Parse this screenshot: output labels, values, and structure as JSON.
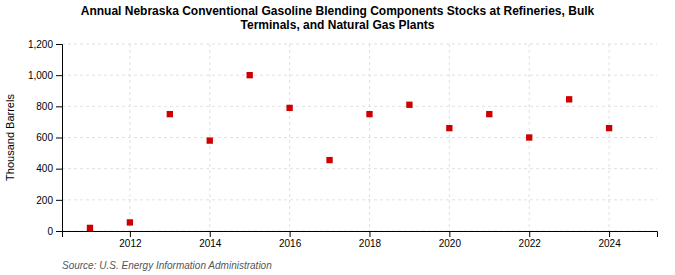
{
  "chart_data": {
    "type": "scatter",
    "title": "Annual Nebraska Conventional Gasoline Blending Components Stocks at Refineries, Bulk\nTerminals, and Natural Gas Plants",
    "ylabel": "Thousand Barrels",
    "source": "Source: U.S. Energy Information Administration",
    "x": [
      2011,
      2012,
      2013,
      2014,
      2015,
      2016,
      2017,
      2018,
      2019,
      2020,
      2021,
      2022,
      2023,
      2024
    ],
    "values": [
      20,
      55,
      750,
      580,
      1000,
      790,
      455,
      750,
      810,
      660,
      750,
      600,
      845,
      660
    ],
    "color": "#cc0000",
    "marker": "square",
    "xlim": [
      2010.3,
      2025.2
    ],
    "xticks": [
      2012,
      2014,
      2016,
      2018,
      2020,
      2022,
      2024
    ],
    "ylim": [
      0,
      1200
    ],
    "yticks": [
      0,
      200,
      400,
      600,
      800,
      {
        "value": 1000,
        "label": "1,000"
      },
      {
        "value": 1200,
        "label": "1,200"
      }
    ],
    "grid": true
  }
}
